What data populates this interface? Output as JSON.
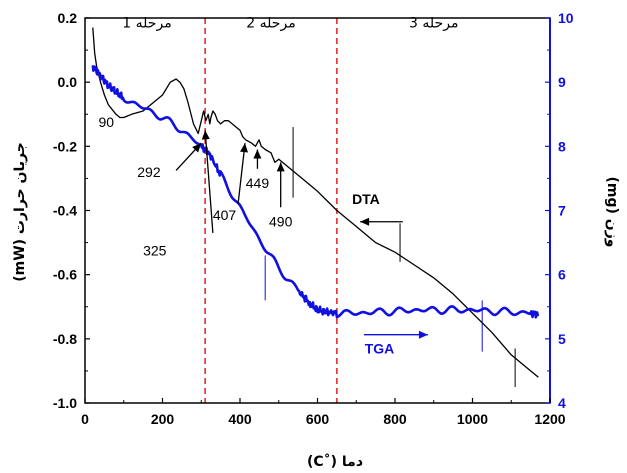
{
  "chart_data": {
    "type": "line",
    "xlabel": "دما (˚C)",
    "ylabel_left": "جریان حرارت (mW)",
    "ylabel_right": "وزن (mg)",
    "xlim": [
      0,
      1200
    ],
    "ylim_left": [
      -1.0,
      0.2
    ],
    "ylim_right": [
      4,
      10
    ],
    "x_ticks": [
      0,
      200,
      400,
      600,
      800,
      1000,
      1200
    ],
    "y_left_ticks": [
      -1.0,
      -0.8,
      -0.6,
      -0.4,
      -0.2,
      0.0,
      0.2
    ],
    "y_left_tick_labels": [
      "-1.0",
      "-0.8",
      "-0.6",
      "-0.4",
      "-0.2",
      "0.0",
      "0.2"
    ],
    "y_right_ticks": [
      4,
      5,
      6,
      7,
      8,
      9,
      10
    ],
    "grid": false,
    "colors": {
      "dta": "#000000",
      "tga": "#1010e0",
      "right_axis": "#1010e0",
      "stage_lines": "#e02020"
    },
    "stage_boundaries": [
      310,
      650
    ],
    "stages": [
      {
        "label": "مرحله 1",
        "x": 160,
        "y": 0.17
      },
      {
        "label": "مرحله 2",
        "x": 480,
        "y": 0.17
      },
      {
        "label": "مرحله 3",
        "x": 900,
        "y": 0.17
      }
    ],
    "series": [
      {
        "name": "DTA",
        "axis": "left",
        "x": [
          20,
          25,
          30,
          40,
          50,
          60,
          80,
          90,
          100,
          120,
          150,
          180,
          200,
          220,
          235,
          245,
          255,
          265,
          280,
          292,
          300,
          306,
          312,
          318,
          322,
          325,
          330,
          336,
          342,
          350,
          360,
          370,
          380,
          390,
          400,
          407,
          415,
          430,
          440,
          449,
          455,
          465,
          480,
          490,
          500,
          520,
          540,
          560,
          600,
          650,
          700,
          750,
          800,
          850,
          900,
          950,
          1000,
          1050,
          1100,
          1150,
          1170
        ],
        "y": [
          0.17,
          0.09,
          0.05,
          0.0,
          -0.04,
          -0.07,
          -0.1,
          -0.11,
          -0.11,
          -0.1,
          -0.09,
          -0.06,
          -0.04,
          0.0,
          0.01,
          0.0,
          -0.02,
          -0.06,
          -0.13,
          -0.16,
          -0.12,
          -0.09,
          -0.12,
          -0.1,
          -0.13,
          -0.11,
          -0.09,
          -0.1,
          -0.12,
          -0.13,
          -0.12,
          -0.12,
          -0.13,
          -0.14,
          -0.15,
          -0.17,
          -0.18,
          -0.19,
          -0.2,
          -0.18,
          -0.2,
          -0.21,
          -0.22,
          -0.25,
          -0.24,
          -0.26,
          -0.28,
          -0.3,
          -0.34,
          -0.4,
          -0.45,
          -0.5,
          -0.53,
          -0.57,
          -0.61,
          -0.66,
          -0.72,
          -0.78,
          -0.85,
          -0.9,
          -0.92
        ],
        "values": [
          0.17,
          0.09,
          0.05,
          0.0,
          -0.04,
          -0.07,
          -0.1,
          -0.11,
          -0.11,
          -0.1,
          -0.09,
          -0.06,
          -0.04,
          0.0,
          0.01,
          0.0,
          -0.02,
          -0.06,
          -0.13,
          -0.16,
          -0.12,
          -0.09,
          -0.12,
          -0.1,
          -0.13,
          -0.11,
          -0.09,
          -0.1,
          -0.12,
          -0.13,
          -0.12,
          -0.12,
          -0.13,
          -0.14,
          -0.15,
          -0.17,
          -0.18,
          -0.19,
          -0.2,
          -0.18,
          -0.2,
          -0.21,
          -0.22,
          -0.25,
          -0.24,
          -0.26,
          -0.28,
          -0.3,
          -0.34,
          -0.4,
          -0.45,
          -0.5,
          -0.53,
          -0.57,
          -0.61,
          -0.66,
          -0.72,
          -0.78,
          -0.85,
          -0.9,
          -0.92
        ]
      },
      {
        "name": "TGA",
        "axis": "right",
        "x": [
          20,
          40,
          60,
          80,
          100,
          150,
          200,
          250,
          300,
          320,
          350,
          400,
          450,
          500,
          550,
          580,
          600,
          620,
          650,
          700,
          750,
          800,
          850,
          900,
          950,
          1000,
          1050,
          1100,
          1150,
          1170
        ],
        "y": [
          9.25,
          9.1,
          8.95,
          8.85,
          8.75,
          8.6,
          8.45,
          8.25,
          8.0,
          7.9,
          7.55,
          7.05,
          6.55,
          6.1,
          5.75,
          5.55,
          5.45,
          5.42,
          5.4,
          5.4,
          5.42,
          5.43,
          5.45,
          5.45,
          5.45,
          5.45,
          5.43,
          5.42,
          5.4,
          5.38
        ],
        "values": [
          9.25,
          9.1,
          8.95,
          8.85,
          8.75,
          8.6,
          8.45,
          8.25,
          8.0,
          7.9,
          7.55,
          7.05,
          6.55,
          6.1,
          5.75,
          5.55,
          5.45,
          5.42,
          5.4,
          5.4,
          5.42,
          5.43,
          5.45,
          5.45,
          5.45,
          5.45,
          5.43,
          5.42,
          5.4,
          5.38
        ]
      }
    ],
    "annotations": [
      {
        "text": "90",
        "tx": 55,
        "ty": -0.14
      },
      {
        "text": "292",
        "tx": 165,
        "ty": -0.295,
        "ax": [
          235,
          -0.275
        ],
        "ah": [
          300,
          -0.19
        ]
      },
      {
        "text": "325",
        "tx": 180,
        "ty": -0.54,
        "ax": [
          330,
          -0.47
        ],
        "ah": [
          310,
          -0.15
        ]
      },
      {
        "text": "407",
        "tx": 360,
        "ty": -0.43,
        "ax": [
          395,
          -0.38
        ],
        "ah": [
          413,
          -0.19
        ]
      },
      {
        "text": "449",
        "tx": 445,
        "ty": -0.33,
        "ax": [
          445,
          -0.27
        ],
        "ah": [
          445,
          -0.21
        ]
      },
      {
        "text": "490",
        "tx": 505,
        "ty": -0.45,
        "ax": [
          505,
          -0.39
        ],
        "ah": [
          505,
          -0.25
        ]
      }
    ],
    "series_labels": [
      {
        "text": "DTA",
        "tx": 725,
        "ty": -0.38,
        "color": "#000000",
        "ax": [
          820,
          -0.435
        ],
        "ah": [
          710,
          -0.435
        ]
      },
      {
        "text": "TGA",
        "tx": 760,
        "ty": -0.845,
        "color": "#1010e0",
        "ax": [
          720,
          -0.787
        ],
        "ah": [
          885,
          -0.787
        ]
      }
    ],
    "markers_left": [
      {
        "x": 537,
        "y0": -0.36,
        "y1": -0.14,
        "color": "#000000"
      },
      {
        "x": 813,
        "y0": -0.56,
        "y1": -0.44,
        "color": "#000000"
      },
      {
        "x": 1110,
        "y0": -0.95,
        "y1": -0.83,
        "color": "#000000"
      }
    ],
    "markers_right": [
      {
        "x": 465,
        "y0": 5.6,
        "y1": 6.3,
        "color": "#1010e0"
      },
      {
        "x": 1025,
        "y0": 4.8,
        "y1": 5.6,
        "color": "#1010e0"
      }
    ]
  }
}
